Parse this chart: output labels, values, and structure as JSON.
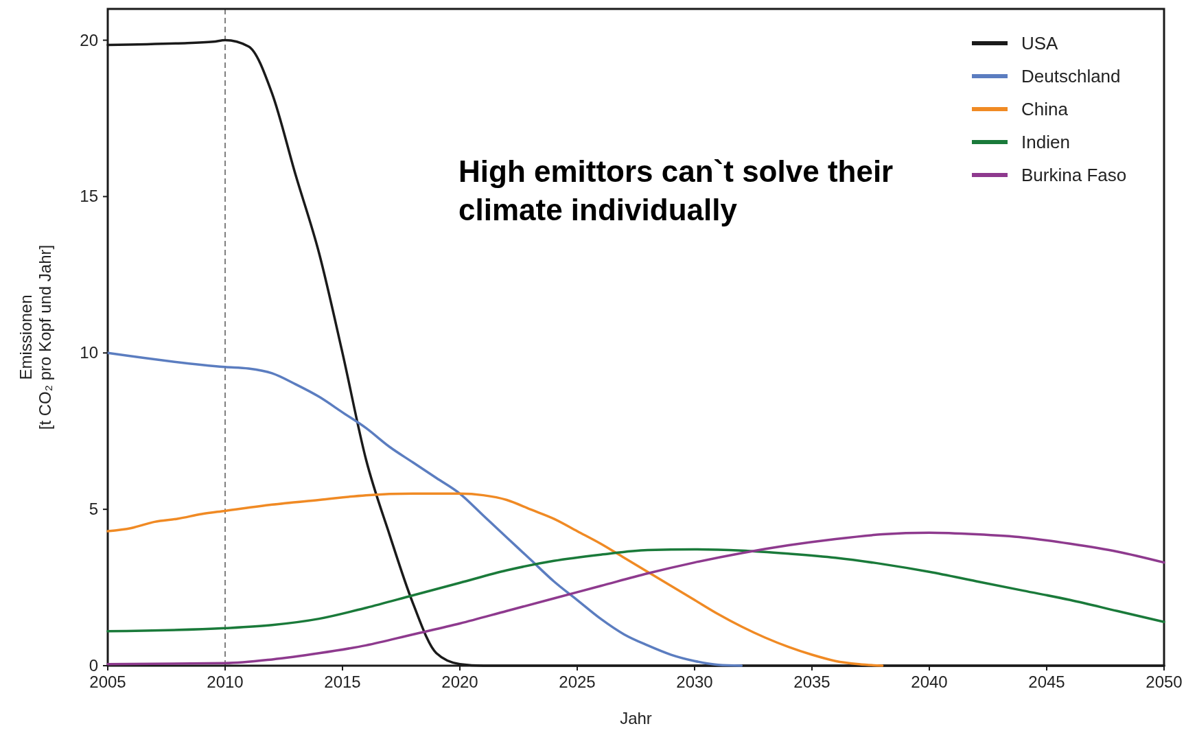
{
  "chart_data": {
    "type": "line",
    "xlabel": "Jahr",
    "ylabel": "Emissionen\n[t CO₂ pro Kopf und Jahr]",
    "annotations": [
      "High emittors can`t solve their climate individually"
    ],
    "xlim": [
      2005,
      2050
    ],
    "xticks": [
      2005,
      2010,
      2015,
      2020,
      2025,
      2030,
      2035,
      2040,
      2045,
      2050
    ],
    "ylim": [
      0,
      21
    ],
    "yticks": [
      0,
      5,
      10,
      15,
      20
    ],
    "grid": false,
    "legend": "top right",
    "line_style": "solid",
    "marker": "none",
    "ref_lines": [
      {
        "axis": "x",
        "value": 2010,
        "color": "#555555",
        "line_style": "dashed"
      }
    ],
    "series": [
      {
        "name": "USA",
        "color": "#1a1a1a",
        "x": [
          2005,
          2008,
          2009.5,
          2010,
          2011,
          2012,
          2013,
          2014,
          2015,
          2016,
          2017,
          2018,
          2019,
          2020,
          2021,
          2050
        ],
        "values": [
          19.85,
          19.9,
          19.95,
          20.0,
          19.8,
          18.3,
          15.7,
          13.2,
          10.0,
          6.6,
          4.2,
          2.0,
          0.4,
          0.05,
          0,
          0
        ]
      },
      {
        "name": "Deutschland",
        "color": "#5b7dc0",
        "x": [
          2005,
          2010,
          2011,
          2012,
          2013,
          2014,
          2015,
          2016,
          2017,
          2018,
          2019,
          2020,
          2021,
          2022,
          2023,
          2024,
          2025,
          2026,
          2027,
          2028,
          2029,
          2030,
          2031,
          2032
        ],
        "values": [
          10.0,
          9.55,
          9.5,
          9.35,
          9.0,
          8.6,
          8.1,
          7.6,
          7.0,
          6.5,
          6.0,
          5.5,
          4.8,
          4.1,
          3.4,
          2.7,
          2.1,
          1.5,
          1.0,
          0.65,
          0.35,
          0.15,
          0.03,
          0
        ]
      },
      {
        "name": "China",
        "color": "#f08a24",
        "x": [
          2005,
          2006,
          2007,
          2008,
          2009,
          2010,
          2012,
          2014,
          2016,
          2018,
          2020,
          2021,
          2022,
          2023,
          2024,
          2025,
          2026,
          2027,
          2028,
          2029,
          2030,
          2031,
          2032,
          2033,
          2034,
          2035,
          2036,
          2037,
          2038
        ],
        "values": [
          4.3,
          4.4,
          4.6,
          4.7,
          4.85,
          4.95,
          5.15,
          5.3,
          5.45,
          5.5,
          5.5,
          5.45,
          5.3,
          5.0,
          4.7,
          4.3,
          3.9,
          3.45,
          3.0,
          2.55,
          2.1,
          1.65,
          1.25,
          0.9,
          0.6,
          0.35,
          0.15,
          0.05,
          0
        ]
      },
      {
        "name": "Indien",
        "color": "#1a7a3a",
        "x": [
          2005,
          2010,
          2012,
          2014,
          2016,
          2018,
          2020,
          2022,
          2024,
          2026,
          2028,
          2030,
          2032,
          2034,
          2036,
          2038,
          2040,
          2042,
          2044,
          2046,
          2048,
          2050
        ],
        "values": [
          1.1,
          1.2,
          1.3,
          1.5,
          1.85,
          2.25,
          2.65,
          3.05,
          3.35,
          3.55,
          3.7,
          3.72,
          3.68,
          3.58,
          3.45,
          3.25,
          3.0,
          2.7,
          2.4,
          2.1,
          1.75,
          1.4
        ]
      },
      {
        "name": "Burkina Faso",
        "color": "#8e3a8e",
        "x": [
          2005,
          2010,
          2012,
          2014,
          2016,
          2018,
          2020,
          2022,
          2024,
          2026,
          2028,
          2030,
          2032,
          2034,
          2036,
          2038,
          2040,
          2042,
          2044,
          2046,
          2048,
          2050
        ],
        "values": [
          0.05,
          0.08,
          0.2,
          0.4,
          0.65,
          1.0,
          1.35,
          1.75,
          2.15,
          2.55,
          2.95,
          3.3,
          3.6,
          3.85,
          4.05,
          4.2,
          4.25,
          4.2,
          4.1,
          3.9,
          3.65,
          3.3
        ]
      }
    ]
  }
}
